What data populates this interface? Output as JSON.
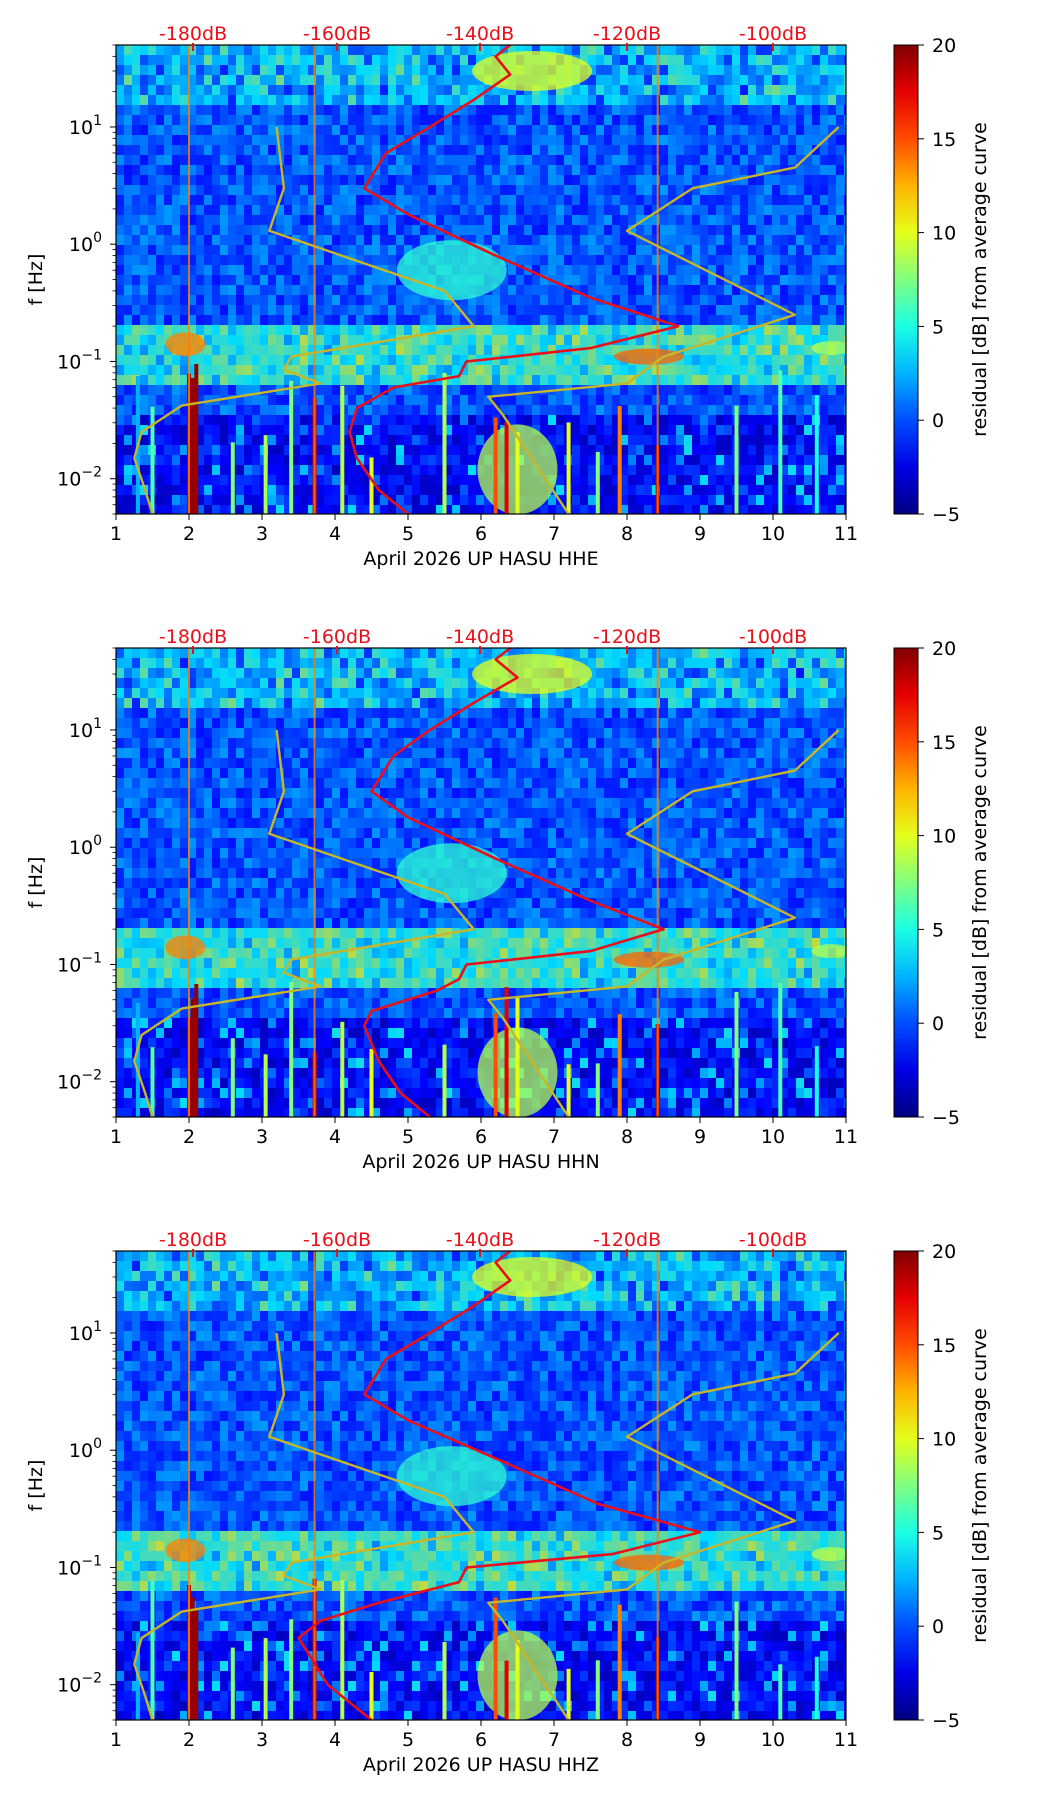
{
  "chart_data": [
    {
      "type": "heatmap",
      "xlabel": "April 2026 UP HASU  HHE",
      "ylabel": "f [Hz]",
      "xlim": [
        1,
        11
      ],
      "ylim": [
        0.005,
        50
      ],
      "y_scale": "log",
      "x_ticks": [
        "1",
        "2",
        "3",
        "4",
        "5",
        "6",
        "7",
        "8",
        "9",
        "10",
        "11"
      ],
      "y_ticks": [
        {
          "value": 10,
          "base": "10",
          "exp": "1"
        },
        {
          "value": 1,
          "base": "10",
          "exp": "0"
        },
        {
          "value": 0.1,
          "base": "10",
          "exp": "−1"
        },
        {
          "value": 0.01,
          "base": "10",
          "exp": "−2"
        }
      ],
      "top_axis_labels": [
        "-180dB",
        "-160dB",
        "-140dB",
        "-120dB",
        "-100dB"
      ],
      "colorbar": {
        "label": "residual [dB] from average curve",
        "range": [
          -5,
          20
        ],
        "ticks": [
          "20",
          "15",
          "10",
          "5",
          "0",
          "−5"
        ],
        "colormap": "jet"
      },
      "series": [
        {
          "color": "#e8101a",
          "points": [
            [
              5.0,
              0.005
            ],
            [
              4.6,
              0.008
            ],
            [
              4.3,
              0.015
            ],
            [
              4.2,
              0.025
            ],
            [
              4.3,
              0.04
            ],
            [
              4.8,
              0.06
            ],
            [
              5.7,
              0.075
            ],
            [
              5.8,
              0.1
            ],
            [
              7.5,
              0.13
            ],
            [
              8.7,
              0.2
            ],
            [
              7.5,
              0.35
            ],
            [
              6.2,
              0.8
            ],
            [
              5.0,
              1.8
            ],
            [
              4.4,
              3.0
            ],
            [
              4.7,
              6.0
            ],
            [
              5.3,
              10.0
            ],
            [
              5.9,
              17.0
            ],
            [
              6.4,
              28.0
            ],
            [
              6.2,
              40.0
            ],
            [
              6.4,
              50.0
            ]
          ]
        },
        {
          "color": "#c8b62a",
          "points": [
            [
              1.5,
              0.005
            ],
            [
              1.4,
              0.008
            ],
            [
              1.25,
              0.015
            ],
            [
              1.35,
              0.025
            ],
            [
              1.9,
              0.042
            ],
            [
              3.8,
              0.065
            ],
            [
              3.3,
              0.085
            ],
            [
              3.4,
              0.11
            ],
            [
              5.9,
              0.2
            ],
            [
              5.5,
              0.4
            ],
            [
              3.1,
              1.3
            ],
            [
              3.3,
              3.0
            ],
            [
              3.2,
              10.0
            ]
          ]
        },
        {
          "color": "#c8b62a",
          "points": [
            [
              7.2,
              0.005
            ],
            [
              6.3,
              0.035
            ],
            [
              6.1,
              0.05
            ],
            [
              8.0,
              0.065
            ],
            [
              8.5,
              0.11
            ],
            [
              10.3,
              0.25
            ],
            [
              8.0,
              1.3
            ],
            [
              8.9,
              3.0
            ],
            [
              10.3,
              4.5
            ],
            [
              10.9,
              10.0
            ]
          ]
        }
      ]
    },
    {
      "type": "heatmap",
      "xlabel": "April 2026 UP HASU  HHN",
      "ylabel": "f [Hz]",
      "xlim": [
        1,
        11
      ],
      "ylim": [
        0.005,
        50
      ],
      "y_scale": "log",
      "x_ticks": [
        "1",
        "2",
        "3",
        "4",
        "5",
        "6",
        "7",
        "8",
        "9",
        "10",
        "11"
      ],
      "y_ticks": [
        {
          "value": 10,
          "base": "10",
          "exp": "1"
        },
        {
          "value": 1,
          "base": "10",
          "exp": "0"
        },
        {
          "value": 0.1,
          "base": "10",
          "exp": "−1"
        },
        {
          "value": 0.01,
          "base": "10",
          "exp": "−2"
        }
      ],
      "top_axis_labels": [
        "-180dB",
        "-160dB",
        "-140dB",
        "-120dB",
        "-100dB"
      ],
      "colorbar": {
        "label": "residual [dB] from average curve",
        "range": [
          -5,
          20
        ],
        "ticks": [
          "20",
          "15",
          "10",
          "5",
          "0",
          "−5"
        ],
        "colormap": "jet"
      },
      "series": [
        {
          "color": "#e8101a",
          "points": [
            [
              5.3,
              0.005
            ],
            [
              4.9,
              0.008
            ],
            [
              4.6,
              0.015
            ],
            [
              4.4,
              0.03
            ],
            [
              4.5,
              0.04
            ],
            [
              5.4,
              0.06
            ],
            [
              5.7,
              0.075
            ],
            [
              5.8,
              0.1
            ],
            [
              7.5,
              0.13
            ],
            [
              8.5,
              0.2
            ],
            [
              7.5,
              0.35
            ],
            [
              6.2,
              0.8
            ],
            [
              5.0,
              1.8
            ],
            [
              4.5,
              3.0
            ],
            [
              4.8,
              6.0
            ],
            [
              5.3,
              10.0
            ],
            [
              5.9,
              17.0
            ],
            [
              6.5,
              28.0
            ],
            [
              6.2,
              40.0
            ],
            [
              6.4,
              50.0
            ]
          ]
        },
        {
          "color": "#c8b62a",
          "points": [
            [
              1.5,
              0.005
            ],
            [
              1.4,
              0.008
            ],
            [
              1.25,
              0.015
            ],
            [
              1.35,
              0.025
            ],
            [
              1.9,
              0.042
            ],
            [
              3.8,
              0.065
            ],
            [
              3.3,
              0.085
            ],
            [
              3.4,
              0.11
            ],
            [
              5.9,
              0.2
            ],
            [
              5.5,
              0.4
            ],
            [
              3.1,
              1.3
            ],
            [
              3.3,
              3.0
            ],
            [
              3.2,
              10.0
            ]
          ]
        },
        {
          "color": "#c8b62a",
          "points": [
            [
              7.2,
              0.005
            ],
            [
              6.3,
              0.035
            ],
            [
              6.1,
              0.05
            ],
            [
              8.0,
              0.065
            ],
            [
              8.5,
              0.11
            ],
            [
              10.3,
              0.25
            ],
            [
              8.0,
              1.3
            ],
            [
              8.9,
              3.0
            ],
            [
              10.3,
              4.5
            ],
            [
              10.9,
              10.0
            ]
          ]
        }
      ]
    },
    {
      "type": "heatmap",
      "xlabel": "April 2026 UP HASU  HHZ",
      "ylabel": "f [Hz]",
      "xlim": [
        1,
        11
      ],
      "ylim": [
        0.005,
        50
      ],
      "y_scale": "log",
      "x_ticks": [
        "1",
        "2",
        "3",
        "4",
        "5",
        "6",
        "7",
        "8",
        "9",
        "10",
        "11"
      ],
      "y_ticks": [
        {
          "value": 10,
          "base": "10",
          "exp": "1"
        },
        {
          "value": 1,
          "base": "10",
          "exp": "0"
        },
        {
          "value": 0.1,
          "base": "10",
          "exp": "−1"
        },
        {
          "value": 0.01,
          "base": "10",
          "exp": "−2"
        }
      ],
      "top_axis_labels": [
        "-180dB",
        "-160dB",
        "-140dB",
        "-120dB",
        "-100dB"
      ],
      "colorbar": {
        "label": "residual [dB] from average curve",
        "range": [
          -5,
          20
        ],
        "ticks": [
          "20",
          "15",
          "10",
          "5",
          "0",
          "−5"
        ],
        "colormap": "jet"
      },
      "series": [
        {
          "color": "#e8101a",
          "points": [
            [
              4.5,
              0.005
            ],
            [
              3.9,
              0.01
            ],
            [
              3.6,
              0.02
            ],
            [
              3.5,
              0.025
            ],
            [
              3.8,
              0.035
            ],
            [
              4.6,
              0.05
            ],
            [
              5.7,
              0.075
            ],
            [
              5.8,
              0.1
            ],
            [
              7.8,
              0.13
            ],
            [
              9.0,
              0.2
            ],
            [
              7.6,
              0.35
            ],
            [
              6.3,
              0.8
            ],
            [
              5.0,
              1.8
            ],
            [
              4.4,
              3.0
            ],
            [
              4.7,
              6.0
            ],
            [
              5.3,
              10.0
            ],
            [
              5.9,
              17.0
            ],
            [
              6.4,
              28.0
            ],
            [
              6.2,
              40.0
            ],
            [
              6.4,
              50.0
            ]
          ]
        },
        {
          "color": "#c8b62a",
          "points": [
            [
              1.5,
              0.005
            ],
            [
              1.4,
              0.008
            ],
            [
              1.25,
              0.015
            ],
            [
              1.35,
              0.025
            ],
            [
              1.9,
              0.042
            ],
            [
              3.8,
              0.065
            ],
            [
              3.3,
              0.085
            ],
            [
              3.4,
              0.11
            ],
            [
              5.9,
              0.2
            ],
            [
              5.5,
              0.4
            ],
            [
              3.1,
              1.3
            ],
            [
              3.3,
              3.0
            ],
            [
              3.2,
              10.0
            ]
          ]
        },
        {
          "color": "#c8b62a",
          "points": [
            [
              7.2,
              0.005
            ],
            [
              6.3,
              0.035
            ],
            [
              6.1,
              0.05
            ],
            [
              8.0,
              0.065
            ],
            [
              8.5,
              0.11
            ],
            [
              10.3,
              0.25
            ],
            [
              8.0,
              1.3
            ],
            [
              8.9,
              3.0
            ],
            [
              10.3,
              4.5
            ],
            [
              10.9,
              10.0
            ]
          ]
        }
      ]
    }
  ]
}
